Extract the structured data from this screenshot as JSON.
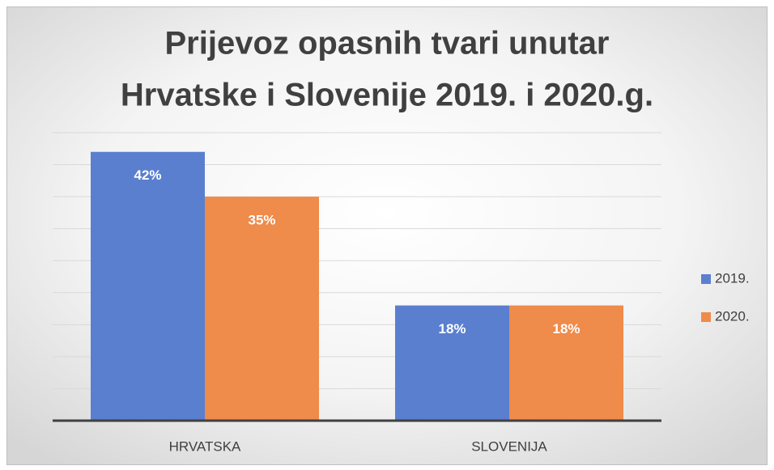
{
  "chart_data": {
    "type": "bar",
    "title": [
      "Prijevoz opasnih tvari unutar",
      "Hrvatske i Slovenije 2019. i 2020.g."
    ],
    "categories": [
      "HRVATSKA",
      "SLOVENIJA"
    ],
    "series": [
      {
        "name": "2019.",
        "color": "#5b7fcf",
        "values": [
          42,
          18
        ],
        "value_labels": [
          "42%",
          "18%"
        ]
      },
      {
        "name": "2020.",
        "color": "#ef8b4b",
        "values": [
          35,
          18
        ],
        "value_labels": [
          "35%",
          "18%"
        ]
      }
    ],
    "ylim": [
      0,
      45
    ],
    "yticks": [
      0,
      5,
      10,
      15,
      20,
      25,
      30,
      35,
      40,
      45
    ],
    "grid": true,
    "legend": "right"
  }
}
